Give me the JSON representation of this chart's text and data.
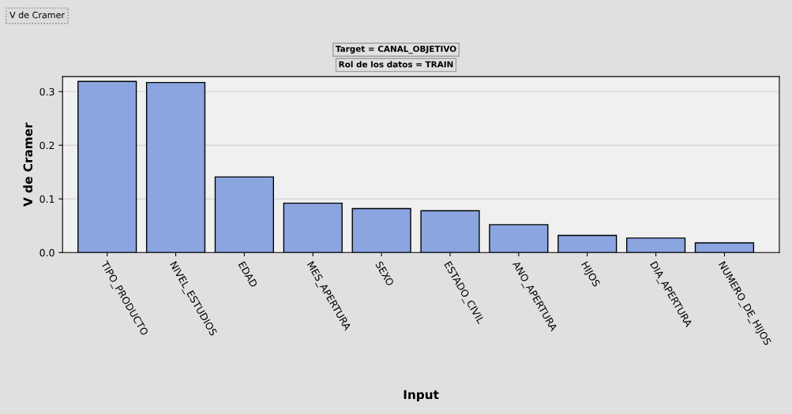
{
  "chart_data": {
    "type": "bar",
    "title": "Target = CANAL_OBJETIVO",
    "subtitle": "Rol de los datos = TRAIN",
    "xlabel": "Input",
    "ylabel": "V de Cramer",
    "annotations": [
      "V de Cramer"
    ],
    "categories": [
      "TIPO_PRODUCTO",
      "NIVEL_ESTUDIOS",
      "EDAD",
      "MES_APERTURA",
      "SEXO",
      "ESTADO_CIVIL",
      "ANO_APERTURA",
      "HIJOS",
      "DIA_APERTURA",
      "NUMERO_DE_HIJOS"
    ],
    "values": [
      0.319,
      0.317,
      0.141,
      0.092,
      0.082,
      0.078,
      0.052,
      0.032,
      0.027,
      0.018
    ],
    "color": "#8aa5e0",
    "ylim": [
      0,
      0.328
    ],
    "yticks": [
      {
        "value": 0,
        "label": "0.0"
      },
      0.1,
      0.2,
      0.3
    ],
    "grid": "y"
  }
}
